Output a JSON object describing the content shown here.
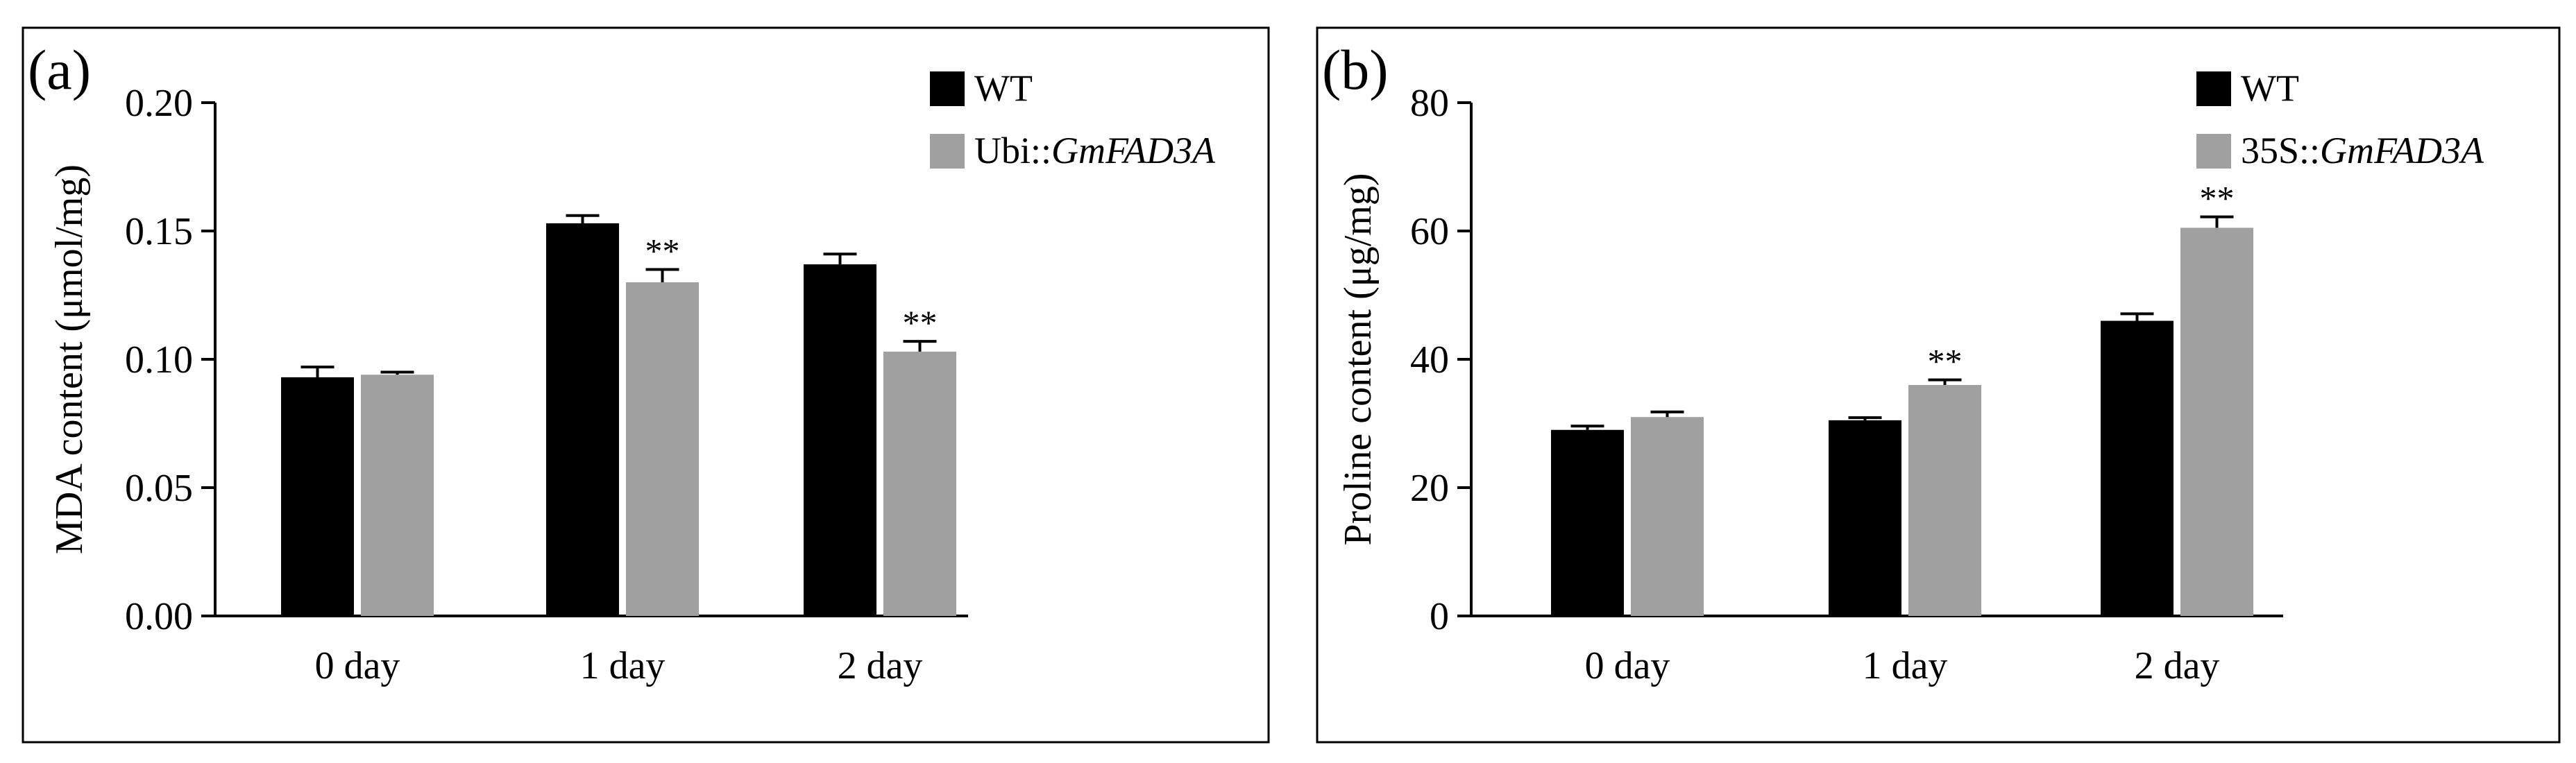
{
  "chart_data": [
    {
      "type": "bar",
      "panel_label": "(a)",
      "categories": [
        "0 day",
        "1 day",
        "2 day"
      ],
      "ylabel": "MDA content (μmol/mg)",
      "xlabel": "",
      "ylim": [
        0,
        0.2
      ],
      "yticks": [
        "0.00",
        "0.05",
        "0.10",
        "0.15",
        "0.20"
      ],
      "legend_position": "top-right",
      "series": [
        {
          "name_prefix": "WT",
          "name_italic": "",
          "color": "#000000",
          "values": [
            0.093,
            0.153,
            0.137
          ],
          "errors": [
            0.004,
            0.003,
            0.004
          ],
          "significance": [
            "",
            "",
            ""
          ]
        },
        {
          "name_prefix": "Ubi::",
          "name_italic": "GmFAD3A",
          "color": "#a0a0a0",
          "values": [
            0.094,
            0.13,
            0.103
          ],
          "errors": [
            0.001,
            0.005,
            0.004
          ],
          "significance": [
            "",
            "**",
            "**"
          ]
        }
      ]
    },
    {
      "type": "bar",
      "panel_label": "(b)",
      "categories": [
        "0 day",
        "1 day",
        "2 day"
      ],
      "ylabel": "Proline content (μg/mg)",
      "xlabel": "",
      "ylim": [
        0,
        80
      ],
      "yticks": [
        "0",
        "20",
        "40",
        "60",
        "80"
      ],
      "legend_position": "top-right",
      "series": [
        {
          "name_prefix": "WT",
          "name_italic": "",
          "color": "#000000",
          "values": [
            29,
            30.5,
            46
          ],
          "errors": [
            0.6,
            0.4,
            1.1
          ],
          "significance": [
            "",
            "",
            ""
          ]
        },
        {
          "name_prefix": "35S::",
          "name_italic": "GmFAD3A",
          "color": "#a0a0a0",
          "values": [
            31,
            36,
            60.5
          ],
          "errors": [
            0.8,
            0.8,
            1.7
          ],
          "significance": [
            "",
            "**",
            "**"
          ]
        }
      ]
    }
  ]
}
